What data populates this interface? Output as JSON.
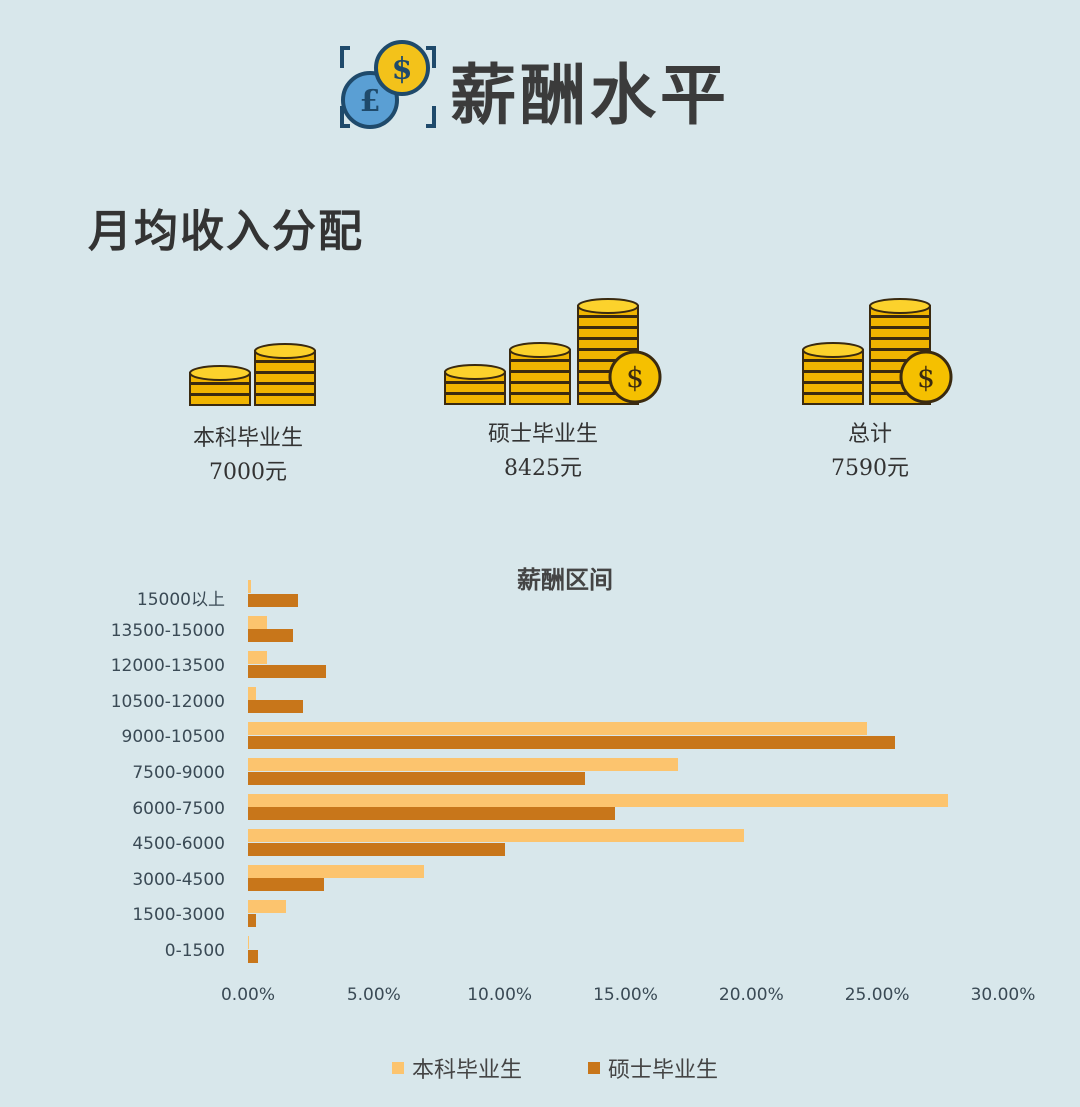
{
  "header": {
    "title": "薪酬水平",
    "icon": "currency-coins-icon"
  },
  "section_title": "月均收入分配",
  "stats": [
    {
      "label": "本科毕业生",
      "value": "7000元",
      "icon": "coin-stack-icon"
    },
    {
      "label": "硕士毕业生",
      "value": "8425元",
      "icon": "coin-stack-dollar-icon"
    },
    {
      "label": "总计",
      "value": "7590元",
      "icon": "coin-stack-dollar-icon"
    }
  ],
  "colors": {
    "background": "#d8e7eb",
    "bachelor": "#fcc46e",
    "master": "#c8761a"
  },
  "chart_data": {
    "type": "bar",
    "orientation": "horizontal",
    "title": "薪酬区间",
    "categories": [
      "15000以上",
      "13500-15000",
      "12000-13500",
      "10500-12000",
      "9000-10500",
      "7500-9000",
      "6000-7500",
      "4500-6000",
      "3000-4500",
      "1500-3000",
      "0-1500"
    ],
    "series": [
      {
        "name": "本科毕业生",
        "values": [
          0.1,
          0.75,
          0.75,
          0.3,
          24.6,
          17.1,
          27.8,
          19.7,
          7.0,
          1.5,
          0.05
        ]
      },
      {
        "name": "硕士毕业生",
        "values": [
          2.0,
          1.8,
          3.1,
          2.2,
          25.7,
          13.4,
          14.6,
          10.2,
          3.0,
          0.3,
          0.4
        ]
      }
    ],
    "xlim": [
      0,
      30
    ],
    "xticks": [
      "0.00%",
      "5.00%",
      "10.00%",
      "15.00%",
      "20.00%",
      "25.00%",
      "30.00%"
    ],
    "grid": false,
    "legend": "bottom"
  }
}
